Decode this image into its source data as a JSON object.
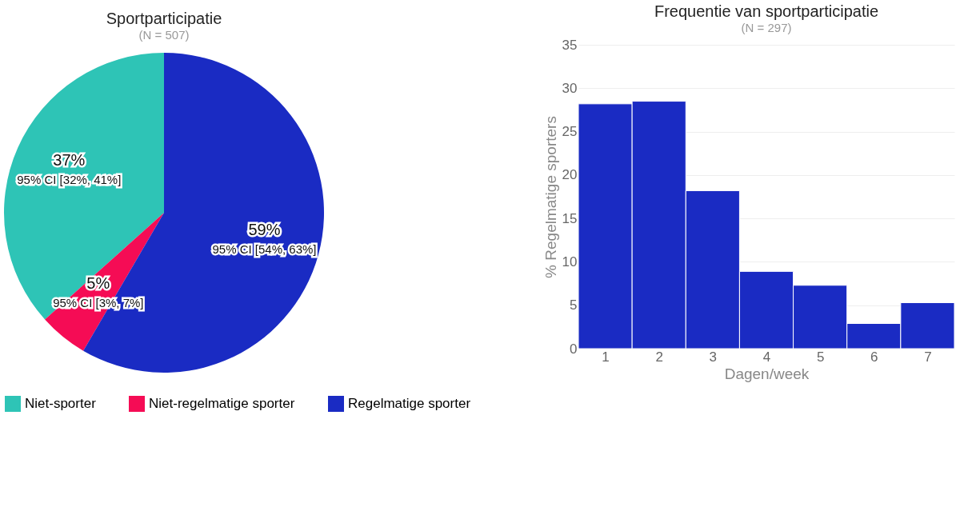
{
  "chart_data": [
    {
      "type": "pie",
      "title": "Sportparticipatie",
      "subtitle": "(N = 507)",
      "categories": [
        "Niet-sporter",
        "Niet-regelmatige sporter",
        "Regelmatige sporter"
      ],
      "values": [
        37,
        5,
        59
      ],
      "colors": [
        "#2ec4b6",
        "#f50c55",
        "#1a2bc3"
      ],
      "value_labels": [
        "37%",
        "5%",
        "59%"
      ],
      "annotations": [
        "95% CI [32%, 41%]",
        "95% CI [3%, 7%]",
        "95% CI [54%, 63%]"
      ],
      "legend": "bottom"
    },
    {
      "type": "histogram",
      "title": "Frequentie van sportparticipatie",
      "subtitle": "(N = 297)",
      "xlabel": "Dagen/week",
      "ylabel": "% Regelmatige sporters",
      "bins": [
        0.5,
        1.5,
        2.5,
        3.5,
        4.5,
        5.5,
        6.5,
        7.5
      ],
      "values": [
        28.2,
        28.5,
        18.2,
        8.9,
        7.3,
        2.9,
        5.3
      ],
      "color": "#1a2bc3",
      "xlim": [
        0.5,
        7.5
      ],
      "xticks": [
        1,
        2,
        3,
        4,
        5,
        6,
        7
      ],
      "ylim": [
        0,
        35
      ],
      "yticks": [
        0,
        5,
        10,
        15,
        20,
        25,
        30,
        35
      ],
      "grid": "y"
    }
  ]
}
